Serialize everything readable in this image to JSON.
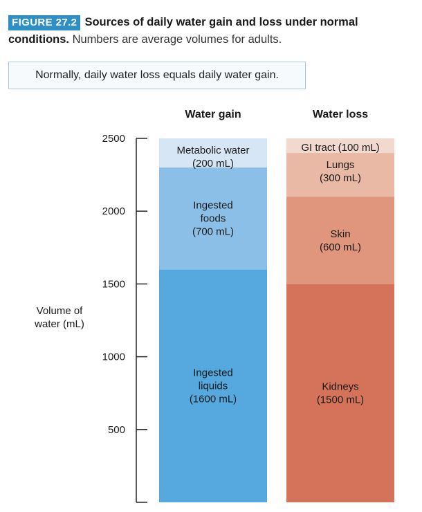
{
  "caption": {
    "figure_label": "FIGURE 27.2",
    "title": "Sources of daily water gain and loss under normal conditions.",
    "note": "Numbers are average volumes for adults."
  },
  "callout": "Normally, daily water loss equals daily water gain.",
  "chart_data": {
    "type": "bar",
    "stacked": true,
    "ylabel_lines": [
      "Volume of",
      "water (mL)"
    ],
    "ylim": [
      0,
      2500
    ],
    "yticks": [
      500,
      1000,
      1500,
      2000,
      2500
    ],
    "columns": [
      {
        "name": "Water gain",
        "segments": [
          {
            "name": "Ingested liquids",
            "lines": [
              "Ingested",
              "liquids",
              "(1600 mL)"
            ],
            "value": 1600,
            "color": "#55a9de"
          },
          {
            "name": "Ingested foods",
            "lines": [
              "Ingested",
              "foods",
              "(700 mL)"
            ],
            "value": 700,
            "color": "#8bbfe7"
          },
          {
            "name": "Metabolic water",
            "lines": [
              "Metabolic water",
              "(200 mL)"
            ],
            "value": 200,
            "color": "#d6e6f5"
          }
        ]
      },
      {
        "name": "Water loss",
        "segments": [
          {
            "name": "Kidneys",
            "lines": [
              "Kidneys",
              "(1500 mL)"
            ],
            "value": 1500,
            "color": "#d4735a"
          },
          {
            "name": "Skin",
            "lines": [
              "Skin",
              "(600 mL)"
            ],
            "value": 600,
            "color": "#df967c"
          },
          {
            "name": "Lungs",
            "lines": [
              "Lungs",
              "(300 mL)"
            ],
            "value": 300,
            "color": "#e9b9a6"
          },
          {
            "name": "GI tract",
            "lines": [
              "GI tract (100 mL)"
            ],
            "value": 100,
            "color": "#f2d9cf"
          }
        ]
      }
    ]
  }
}
